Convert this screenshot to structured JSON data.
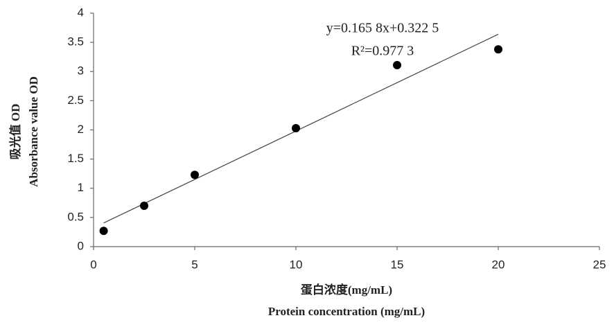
{
  "chart_data": {
    "type": "scatter",
    "x_label": "蛋白浓度(mg/mL)",
    "x_label_en": "Protein concentration (mg/mL)",
    "y_label": "吸光值 OD",
    "y_label_en": "Absorbance value OD",
    "x": [
      0.5,
      2.5,
      5,
      10,
      15,
      20
    ],
    "values": [
      0.27,
      0.7,
      1.23,
      2.03,
      3.11,
      3.38
    ],
    "color": "#000000",
    "xlim": [
      0,
      25
    ],
    "xticks": [
      0,
      5,
      10,
      15,
      20,
      25
    ],
    "ylim": [
      0,
      4
    ],
    "yticks": [
      0,
      0.5,
      1,
      1.5,
      2,
      2.5,
      3,
      3.5,
      4
    ],
    "grid": false,
    "trendline": {
      "slope": 0.1658,
      "intercept": 0.3225,
      "equation": "y=0.165 8x+0.322 5",
      "r2": "R²=0.977 3"
    }
  }
}
